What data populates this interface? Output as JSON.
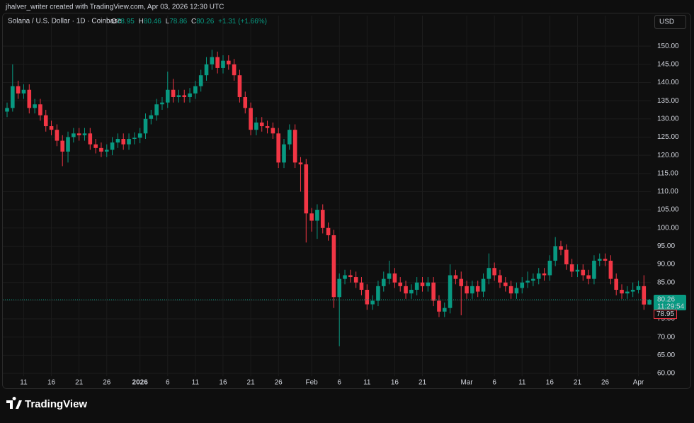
{
  "header": {
    "credit": "jhalver_writer created with TradingView.com, Apr 03, 2026 12:30 UTC"
  },
  "footer": {
    "logo": "TradingView"
  },
  "chart_data": {
    "type": "candlestick",
    "symbol": "Solana / U.S. Dollar · 1D · Coinbase",
    "legend_labels": [
      "O",
      "H",
      "L",
      "C"
    ],
    "change": "+1.31 (+1.66%)",
    "currency": "USD",
    "countdown": "11:29:54",
    "up_color": "#089981",
    "down_color": "#f23645",
    "grid": true,
    "categories": [
      null,
      null,
      null,
      "11",
      null,
      null,
      null,
      null,
      "16",
      null,
      null,
      null,
      null,
      "21",
      null,
      null,
      null,
      null,
      "26",
      null,
      null,
      null,
      null,
      null,
      "2026",
      null,
      null,
      null,
      null,
      "6",
      null,
      null,
      null,
      null,
      "11",
      null,
      null,
      null,
      null,
      "16",
      null,
      null,
      null,
      null,
      "21",
      null,
      null,
      null,
      null,
      "26",
      null,
      null,
      null,
      null,
      null,
      "Feb",
      null,
      null,
      null,
      null,
      "6",
      null,
      null,
      null,
      null,
      "11",
      null,
      null,
      null,
      null,
      "16",
      null,
      null,
      null,
      null,
      "21",
      null,
      null,
      null,
      null,
      null,
      null,
      null,
      "Mar",
      null,
      null,
      null,
      null,
      "6",
      null,
      null,
      null,
      null,
      "11",
      null,
      null,
      null,
      null,
      "16",
      null,
      null,
      null,
      null,
      "21",
      null,
      null,
      null,
      null,
      "26",
      null,
      null,
      null,
      null,
      null,
      "Apr",
      null,
      null
    ],
    "open": [
      132,
      133,
      139,
      137,
      138,
      133,
      134,
      131,
      128,
      127,
      124,
      121,
      125,
      126,
      125.5,
      126,
      123,
      122,
      121,
      121.5,
      123.5,
      124.5,
      123,
      124.5,
      124.8,
      126,
      130,
      131,
      134,
      134.5,
      138,
      136,
      136.5,
      136,
      137,
      139,
      142,
      145,
      147,
      144,
      146,
      145,
      142,
      136,
      133,
      127,
      129,
      128,
      127.5,
      126,
      118,
      123,
      127,
      118,
      117.5,
      104,
      102,
      105,
      100,
      98,
      81,
      86,
      87,
      86.5,
      85,
      83,
      79,
      80,
      84,
      86,
      87.5,
      85,
      84,
      82,
      83,
      85,
      84,
      85,
      80,
      77,
      78,
      87,
      86,
      84,
      82,
      84,
      82.5,
      86,
      89,
      87,
      85,
      84,
      82,
      83.5,
      85,
      85.5,
      86,
      87.5,
      87,
      91,
      95,
      94,
      90,
      88,
      88.5,
      87,
      86,
      91,
      91.5,
      91,
      86,
      83,
      82,
      82.5,
      83,
      84,
      78.95
    ],
    "high": [
      134.5,
      145,
      140.5,
      139.5,
      139.5,
      135.5,
      135.5,
      132.5,
      129.5,
      128.5,
      125.5,
      126.5,
      127.5,
      127.5,
      127.5,
      127.5,
      124.5,
      123.5,
      123,
      125,
      126,
      126,
      126,
      126.3,
      127.5,
      131.5,
      132.5,
      135.5,
      136,
      143,
      141,
      138,
      138,
      138.5,
      140.5,
      143.5,
      147,
      149,
      148.5,
      147.5,
      147.5,
      146.5,
      143.5,
      137.5,
      134.5,
      130.5,
      130.5,
      129.5,
      129,
      127.5,
      124.5,
      128.5,
      128.5,
      119.5,
      119,
      105.5,
      106.5,
      106.5,
      101.5,
      99.5,
      87.5,
      88.5,
      88.5,
      88,
      86.5,
      84.5,
      81.5,
      85.5,
      88,
      91,
      89,
      86.5,
      85.5,
      84.5,
      86.5,
      86.5,
      86.5,
      86.5,
      81.5,
      79.5,
      90,
      88.5,
      88,
      85.5,
      85.5,
      85.5,
      87.5,
      93,
      90.5,
      88.5,
      86.5,
      85.5,
      85,
      86.5,
      88,
      87.5,
      89,
      89,
      92.5,
      97.5,
      96.5,
      95.5,
      91.5,
      90,
      90,
      88.5,
      92.5,
      93,
      93,
      92.5,
      87.5,
      84.5,
      84,
      85,
      85.5,
      87,
      80.46
    ],
    "low": [
      130.5,
      132,
      135.5,
      135.5,
      131.5,
      131.5,
      129.5,
      126.5,
      125.5,
      122.5,
      117,
      118,
      123.5,
      124,
      124,
      121.5,
      120.5,
      119.5,
      119.5,
      120,
      122,
      121.5,
      121.5,
      123,
      123.3,
      124.5,
      128.5,
      129.5,
      132.5,
      133,
      134.5,
      134.5,
      134.5,
      134.5,
      135.5,
      137.5,
      140.5,
      143.5,
      142.5,
      142.5,
      143.5,
      140.5,
      134.5,
      131.5,
      125.5,
      125.5,
      126.5,
      126,
      124.5,
      116.5,
      116.5,
      121.5,
      116.5,
      110,
      96,
      99,
      97,
      98.5,
      96.5,
      78,
      67.5,
      84.5,
      85,
      83.5,
      81.5,
      77.5,
      77.5,
      78.5,
      82.5,
      84.5,
      83.5,
      82.5,
      80.5,
      80.5,
      81.5,
      82.5,
      82.5,
      78.5,
      75.5,
      75.5,
      76.5,
      84.5,
      76,
      80.5,
      80.5,
      81,
      81,
      84.5,
      85.5,
      83.5,
      82.5,
      80.5,
      80.5,
      82,
      83.5,
      84,
      84.5,
      85.5,
      85.5,
      89.5,
      92.5,
      88.5,
      86.5,
      86.5,
      85.5,
      84.5,
      84.5,
      89.5,
      89.5,
      84.5,
      81.5,
      80.5,
      80.5,
      81,
      82,
      77.5,
      78.86
    ],
    "close": [
      133,
      139,
      137,
      138,
      133,
      134,
      131,
      128,
      127,
      124,
      121,
      125,
      126,
      125.5,
      126,
      123,
      122,
      121,
      121.5,
      123.5,
      124.5,
      123,
      124.5,
      124.8,
      126,
      130,
      131,
      134,
      134.5,
      138,
      136,
      136.5,
      136,
      137,
      139,
      142,
      145,
      147,
      144,
      146,
      145,
      142,
      136,
      133,
      127,
      129,
      128,
      127.5,
      126,
      118,
      123,
      127,
      118,
      117.5,
      104,
      102,
      105,
      100,
      98,
      81,
      86,
      87,
      86.5,
      85,
      83,
      79,
      80,
      84,
      86,
      87.5,
      85,
      84,
      82,
      83,
      85,
      84,
      85,
      80,
      77,
      78,
      87,
      86,
      84,
      82,
      84,
      82.5,
      86,
      89,
      87,
      85,
      84,
      82,
      83.5,
      85,
      85.5,
      86,
      87.5,
      87,
      91,
      95,
      94,
      90,
      88,
      88.5,
      87,
      86,
      91,
      91.5,
      91,
      86,
      83,
      82,
      82.5,
      83,
      84,
      78.95,
      80.26
    ],
    "ylim": [
      56.5,
      154.9
    ],
    "yticks": [
      {
        "value": 60,
        "label": "60.00"
      },
      {
        "value": 65,
        "label": "65.00"
      },
      {
        "value": 70,
        "label": "70.00"
      },
      {
        "value": 75,
        "label": "75.00"
      },
      {
        "value": 80,
        "label": "80.00"
      },
      {
        "value": 85,
        "label": "85.00"
      },
      {
        "value": 90,
        "label": "90.00"
      },
      {
        "value": 95,
        "label": "95.00"
      },
      {
        "value": 100,
        "label": "100.00"
      },
      {
        "value": 105,
        "label": "105.00"
      },
      {
        "value": 110,
        "label": "110.00"
      },
      {
        "value": 115,
        "label": "115.00"
      },
      {
        "value": 120,
        "label": "120.00"
      },
      {
        "value": 125,
        "label": "125.00"
      },
      {
        "value": 130,
        "label": "130.00"
      },
      {
        "value": 135,
        "label": "135.00"
      },
      {
        "value": 140,
        "label": "140.00"
      },
      {
        "value": 145,
        "label": "145.00"
      },
      {
        "value": 150,
        "label": "150.00"
      }
    ]
  }
}
